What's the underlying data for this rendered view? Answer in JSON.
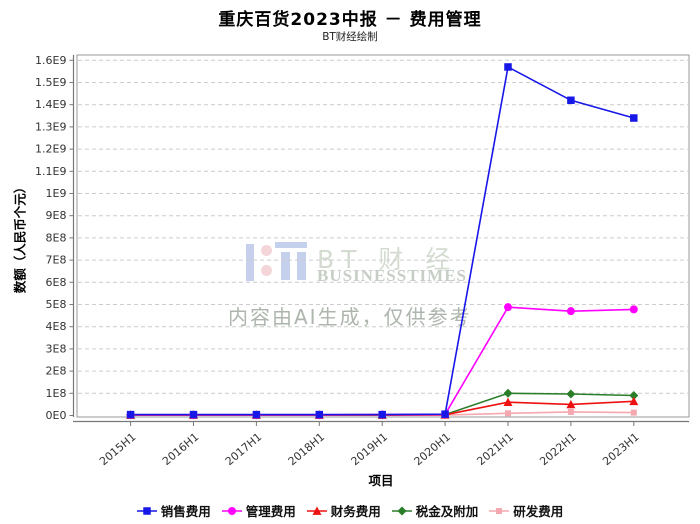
{
  "title": "重庆百货2023中报 － 费用管理",
  "subtitle": "BT财经绘制",
  "watermark": {
    "brand": "BT 财 经",
    "brand_sub": "BUSINESSTIMES",
    "notice": "内容由AI生成，仅供参考",
    "logo_blue": "#bcc8ea",
    "logo_pink": "#f3cfd3"
  },
  "chart_data": {
    "type": "line",
    "title": "重庆百货2023中报 － 费用管理",
    "subtitle": "BT财经绘制",
    "xlabel": "项目",
    "ylabel": "数额（人民币个元）",
    "categories": [
      "2015H1",
      "2016H1",
      "2017H1",
      "2018H1",
      "2019H1",
      "2020H1",
      "2021H1",
      "2022H1",
      "2023H1"
    ],
    "y_ticks": [
      "0E0",
      "1E8",
      "2E8",
      "3E8",
      "4E8",
      "5E8",
      "6E8",
      "7E8",
      "8E8",
      "9E8",
      "1E9",
      "1.1E9",
      "1.2E9",
      "1.3E9",
      "1.4E9",
      "1.5E9",
      "1.6E9"
    ],
    "ylim": [
      0,
      1600000000
    ],
    "grid": true,
    "legend_position": "bottom",
    "series": [
      {
        "id": "sales",
        "name": "销售费用",
        "color": "#1717e8",
        "marker": "square",
        "size": 7.5,
        "values": [
          4000000,
          4000000,
          4000000,
          4000000,
          4000000,
          6000000,
          1570000000,
          1420000000,
          1340000000
        ]
      },
      {
        "id": "admin",
        "name": "管理费用",
        "color": "#ff00ff",
        "marker": "circle",
        "size": 8,
        "values": [
          3000000,
          3000000,
          3000000,
          3000000,
          4000000,
          5000000,
          488000000,
          470000000,
          478000000
        ]
      },
      {
        "id": "finance",
        "name": "财务费用",
        "color": "#ee1111",
        "marker": "triangle",
        "size": 9,
        "values": [
          2000000,
          2000000,
          2000000,
          2000000,
          2000000,
          3000000,
          60000000,
          50000000,
          64000000
        ]
      },
      {
        "id": "tax",
        "name": "税金及附加",
        "color": "#2a7e2a",
        "marker": "diamond",
        "size": 9,
        "values": [
          3000000,
          3000000,
          3000000,
          3000000,
          3000000,
          4000000,
          100000000,
          97000000,
          90000000
        ]
      },
      {
        "id": "rd",
        "name": "研发费用",
        "color": "#f5a8b0",
        "marker": "square",
        "size": 6,
        "values": [
          null,
          null,
          null,
          null,
          1000000,
          2000000,
          10000000,
          16000000,
          13000000
        ]
      }
    ]
  }
}
